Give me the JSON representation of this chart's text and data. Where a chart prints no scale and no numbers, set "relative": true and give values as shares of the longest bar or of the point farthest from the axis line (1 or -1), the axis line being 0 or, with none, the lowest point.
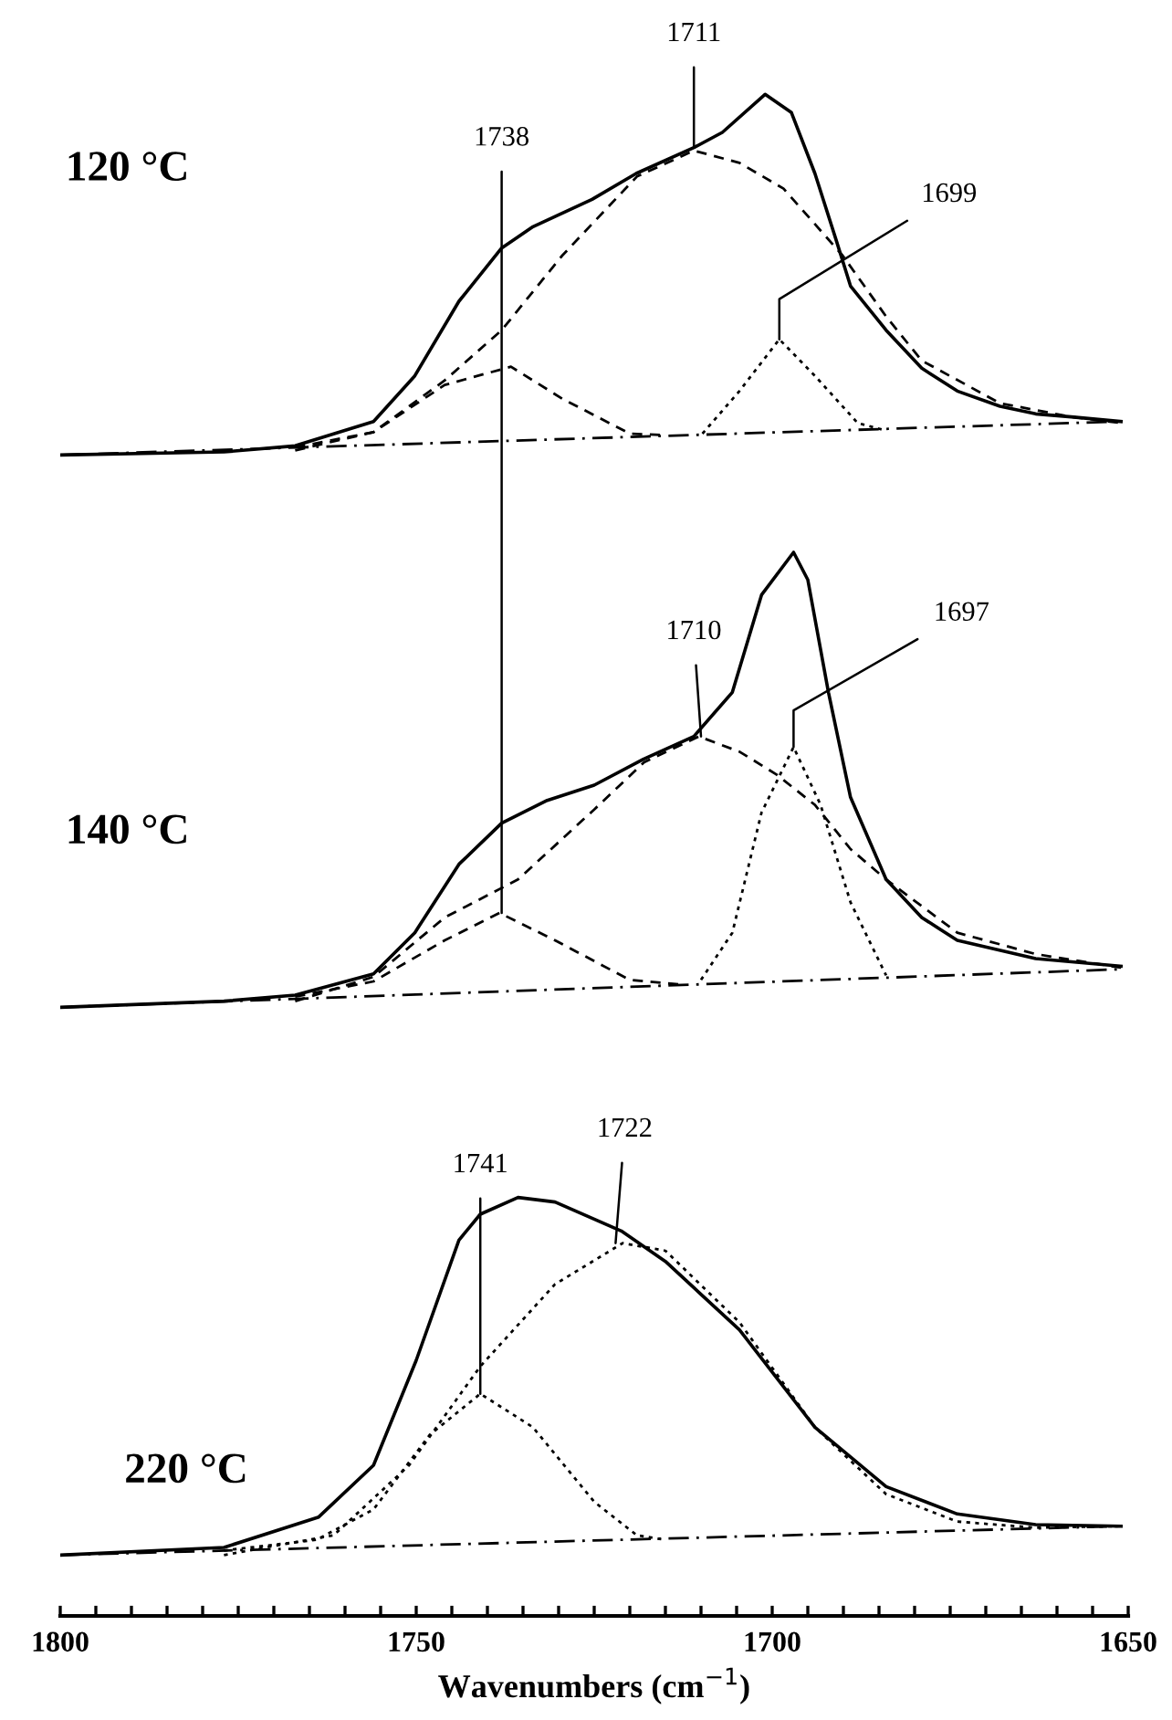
{
  "chart_data": {
    "type": "line",
    "relative": true,
    "xlabel": "Wavenumbers (cm$^{−1}$)",
    "xlim": [
      1800,
      1650
    ],
    "xticks": [
      1800,
      {
        "value": 1795,
        "label": null
      },
      {
        "value": 1790,
        "label": null
      },
      {
        "value": 1785,
        "label": null
      },
      {
        "value": 1780,
        "label": null
      },
      {
        "value": 1775,
        "label": null
      },
      {
        "value": 1770,
        "label": null
      },
      {
        "value": 1765,
        "label": null
      },
      {
        "value": 1760,
        "label": null
      },
      {
        "value": 1755,
        "label": null
      },
      1750,
      {
        "value": 1745,
        "label": null
      },
      {
        "value": 1740,
        "label": null
      },
      {
        "value": 1735,
        "label": null
      },
      {
        "value": 1730,
        "label": null
      },
      {
        "value": 1725,
        "label": null
      },
      {
        "value": 1720,
        "label": null
      },
      {
        "value": 1715,
        "label": null
      },
      {
        "value": 1710,
        "label": null
      },
      {
        "value": 1705,
        "label": null
      },
      1700,
      {
        "value": 1695,
        "label": null
      },
      {
        "value": 1690,
        "label": null
      },
      {
        "value": 1685,
        "label": null
      },
      {
        "value": 1680,
        "label": null
      },
      {
        "value": 1675,
        "label": null
      },
      {
        "value": 1670,
        "label": null
      },
      {
        "value": 1665,
        "label": null
      },
      {
        "value": 1660,
        "label": null
      },
      {
        "value": 1655,
        "label": null
      },
      1650
    ],
    "grid": false,
    "legend": false,
    "marker": "none",
    "series": [
      {
        "color": "#000000",
        "line_style": "solid",
        "x": [
          1800,
          1777,
          1767,
          1756,
          1750.2,
          1744,
          1738,
          1733.6,
          1725.3,
          1719.1,
          1711,
          1707,
          1701,
          1697.3,
          1694,
          1691,
          1689,
          1684,
          1679,
          1674,
          1668,
          1663,
          1658,
          1651
        ],
        "values": [
          0.763,
          0.765,
          0.769,
          0.785,
          0.815,
          0.864,
          0.899,
          0.913,
          0.931,
          0.948,
          0.965,
          0.975,
          1.0,
          0.988,
          0.948,
          0.904,
          0.874,
          0.845,
          0.82,
          0.805,
          0.795,
          0.79,
          0.788,
          0.785
        ]
      },
      {
        "color": "#000000",
        "line_style": "dashdot",
        "x": [
          1800,
          1651
        ],
        "values": [
          0.763,
          0.785
        ]
      },
      {
        "color": "#000000",
        "line_style": "dashed",
        "x": [
          1767,
          1756,
          1746,
          1736.7,
          1729.5,
          1720,
          1715
        ],
        "values": [
          0.768,
          0.778,
          0.809,
          0.821,
          0.8,
          0.777,
          0.776
        ]
      },
      {
        "color": "#000000",
        "line_style": "dashed",
        "x": [
          1767,
          1756,
          1746,
          1738,
          1729.5,
          1719,
          1711,
          1704.6,
          1698.4,
          1690.1,
          1684,
          1679,
          1668,
          1658,
          1651
        ],
        "values": [
          0.766,
          0.778,
          0.812,
          0.845,
          0.894,
          0.946,
          0.963,
          0.955,
          0.938,
          0.894,
          0.854,
          0.825,
          0.797,
          0.788,
          0.784
        ]
      },
      {
        "color": "#000000",
        "line_style": "dotted",
        "x": [
          1709.8,
          1704.6,
          1699,
          1694,
          1688,
          1684
        ],
        "values": [
          0.777,
          0.805,
          0.839,
          0.815,
          0.784,
          0.779
        ]
      },
      {
        "color": "#000000",
        "line_style": "solid",
        "x": [
          1800,
          1777,
          1767,
          1756,
          1750.2,
          1744,
          1738,
          1731.6,
          1725,
          1718.1,
          1711,
          1705.6,
          1701.5,
          1697,
          1695,
          1692.1,
          1689,
          1684,
          1679,
          1674,
          1663,
          1651
        ],
        "values": [
          0.4,
          0.404,
          0.408,
          0.422,
          0.449,
          0.494,
          0.521,
          0.536,
          0.546,
          0.563,
          0.578,
          0.607,
          0.671,
          0.699,
          0.681,
          0.607,
          0.538,
          0.484,
          0.459,
          0.444,
          0.432,
          0.427
        ]
      },
      {
        "color": "#000000",
        "line_style": "dashdot",
        "x": [
          1800,
          1651
        ],
        "values": [
          0.4,
          0.425
        ]
      },
      {
        "color": "#000000",
        "line_style": "dashed",
        "x": [
          1767,
          1756,
          1746,
          1738.3,
          1730.5,
          1720,
          1712.9
        ],
        "values": [
          0.407,
          0.417,
          0.444,
          0.462,
          0.444,
          0.418,
          0.415
        ]
      },
      {
        "color": "#000000",
        "line_style": "dashed",
        "x": [
          1767,
          1756,
          1746,
          1735.7,
          1725,
          1718,
          1710.3,
          1704.6,
          1699.4,
          1694,
          1689,
          1684,
          1674,
          1663,
          1651
        ],
        "values": [
          0.404,
          0.42,
          0.459,
          0.484,
          0.53,
          0.561,
          0.578,
          0.568,
          0.553,
          0.533,
          0.504,
          0.484,
          0.449,
          0.435,
          0.426
        ]
      },
      {
        "color": "#000000",
        "line_style": "dotted",
        "x": [
          1710,
          1705.6,
          1701.5,
          1697,
          1693.2,
          1689,
          1684
        ],
        "values": [
          0.418,
          0.449,
          0.528,
          0.571,
          0.533,
          0.469,
          0.421
        ]
      },
      {
        "color": "#000000",
        "line_style": "solid",
        "x": [
          1800,
          1777,
          1763.7,
          1756,
          1750,
          1744,
          1741,
          1735.7,
          1730.5,
          1721.2,
          1715,
          1704.6,
          1694,
          1684,
          1674,
          1663,
          1651
        ],
        "values": [
          0.04,
          0.045,
          0.065,
          0.099,
          0.168,
          0.247,
          0.264,
          0.275,
          0.272,
          0.253,
          0.233,
          0.188,
          0.124,
          0.085,
          0.067,
          0.06,
          0.059
        ]
      },
      {
        "color": "#000000",
        "line_style": "dashdot",
        "x": [
          1800,
          1651
        ],
        "values": [
          0.04,
          0.059
        ]
      },
      {
        "color": "#000000",
        "line_style": "dotted",
        "x": [
          1777,
          1764,
          1756,
          1748.1,
          1741,
          1733.6,
          1725,
          1719,
          1715
        ],
        "values": [
          0.043,
          0.05,
          0.07,
          0.119,
          0.146,
          0.124,
          0.075,
          0.053,
          0.05
        ]
      },
      {
        "color": "#000000",
        "line_style": "dotted",
        "x": [
          1777,
          1761.6,
          1751,
          1741,
          1730.5,
          1721,
          1715,
          1704.6,
          1694,
          1684,
          1674,
          1663,
          1651
        ],
        "values": [
          0.04,
          0.053,
          0.099,
          0.164,
          0.218,
          0.245,
          0.24,
          0.193,
          0.124,
          0.08,
          0.062,
          0.058,
          0.059
        ]
      }
    ],
    "annotations": [
      {
        "text": "1711",
        "x": 1711,
        "y": 0.965
      },
      {
        "text": "1738",
        "x": 1738,
        "y": 0.462
      },
      {
        "text": "1699",
        "x": 1699,
        "y": 0.839
      },
      {
        "text": "1710",
        "x": 1710,
        "y": 0.578
      },
      {
        "text": "1697",
        "x": 1697,
        "y": 0.571
      },
      {
        "text": "1741",
        "x": 1741,
        "y": 0.146
      },
      {
        "text": "1722",
        "x": 1722,
        "y": 0.245
      },
      "120 °C",
      "140 °C",
      "220 °C"
    ]
  }
}
